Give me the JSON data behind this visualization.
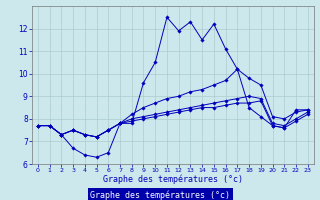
{
  "xlabel": "Graphe des températures (°c)",
  "bg_color": "#cce8ec",
  "line_color": "#0000bb",
  "grid_color": "#aacccc",
  "ylim": [
    6,
    13
  ],
  "xlim": [
    -0.5,
    23.5
  ],
  "yticks": [
    6,
    7,
    8,
    9,
    10,
    11,
    12
  ],
  "xticks": [
    0,
    1,
    2,
    3,
    4,
    5,
    6,
    7,
    8,
    9,
    10,
    11,
    12,
    13,
    14,
    15,
    16,
    17,
    18,
    19,
    20,
    21,
    22,
    23
  ],
  "series": [
    [
      7.7,
      7.7,
      7.3,
      6.7,
      6.4,
      6.3,
      6.5,
      7.8,
      7.8,
      9.6,
      10.5,
      12.5,
      11.9,
      12.3,
      11.5,
      12.2,
      11.1,
      10.2,
      8.5,
      8.1,
      7.7,
      7.6,
      8.4,
      8.4
    ],
    [
      7.7,
      7.7,
      7.3,
      7.5,
      7.3,
      7.2,
      7.5,
      7.8,
      8.2,
      8.5,
      8.7,
      8.9,
      9.0,
      9.2,
      9.3,
      9.5,
      9.7,
      10.2,
      9.8,
      9.5,
      8.1,
      8.0,
      8.3,
      8.4
    ],
    [
      7.7,
      7.7,
      7.3,
      7.5,
      7.3,
      7.2,
      7.5,
      7.8,
      8.0,
      8.1,
      8.2,
      8.3,
      8.4,
      8.5,
      8.6,
      8.7,
      8.8,
      8.9,
      9.0,
      8.9,
      7.8,
      7.7,
      8.0,
      8.3
    ],
    [
      7.7,
      7.7,
      7.3,
      7.5,
      7.3,
      7.2,
      7.5,
      7.8,
      7.9,
      8.0,
      8.1,
      8.2,
      8.3,
      8.4,
      8.5,
      8.5,
      8.6,
      8.7,
      8.7,
      8.8,
      7.7,
      7.6,
      7.9,
      8.2
    ]
  ]
}
